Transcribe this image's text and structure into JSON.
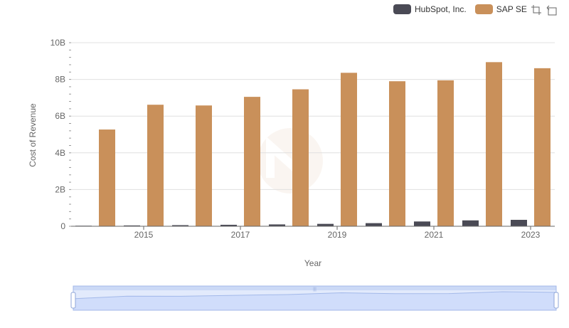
{
  "toolbox": {
    "zoom_icon": "data-zoom-icon",
    "restore_icon": "restore-icon"
  },
  "chart_data": {
    "type": "bar",
    "xlabel": "Year",
    "ylabel": "Cost of Revenue",
    "x": [
      2014,
      2015,
      2016,
      2017,
      2018,
      2019,
      2020,
      2021,
      2022,
      2023
    ],
    "x_tick_labels": [
      "2015",
      "2017",
      "2019",
      "2021",
      "2023"
    ],
    "y_tick_labels": [
      "0",
      "2B",
      "4B",
      "6B",
      "8B",
      "10B"
    ],
    "ylim": [
      0,
      10000000000
    ],
    "grid": true,
    "legend_position": "top-right",
    "series": [
      {
        "name": "HubSpot, Inc.",
        "color": "#4a4a55",
        "values": [
          30000000,
          45000000,
          60000000,
          80000000,
          100000000,
          130000000,
          170000000,
          260000000,
          320000000,
          350000000
        ]
      },
      {
        "name": "SAP SE",
        "color": "#c9905a",
        "values": [
          5270000000,
          6620000000,
          6580000000,
          7050000000,
          7460000000,
          8360000000,
          7900000000,
          7950000000,
          8940000000,
          8610000000
        ]
      }
    ],
    "datazoom": {
      "start": 0,
      "end": 100
    }
  }
}
